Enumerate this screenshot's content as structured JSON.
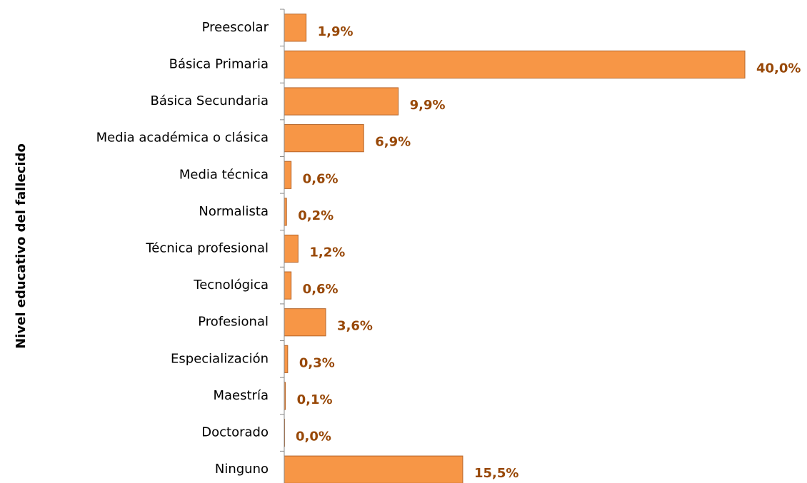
{
  "chart_data": {
    "type": "barh",
    "y_label": "Nivel educativo del fallecido",
    "categories": [
      "Preescolar",
      "Básica Primaria",
      "Básica Secundaria",
      "Media académica o clásica",
      "Media técnica",
      "Normalista",
      "Técnica profesional",
      "Tecnológica",
      "Profesional",
      "Especialización",
      "Maestría",
      "Doctorado",
      "Ninguno"
    ],
    "values": [
      1.9,
      40.0,
      9.9,
      6.9,
      0.6,
      0.2,
      1.2,
      0.6,
      3.6,
      0.3,
      0.1,
      0.0,
      15.5
    ],
    "value_labels": [
      "1,9%",
      "40,0%",
      "9,9%",
      "6,9%",
      "0,6%",
      "0,2%",
      "1,2%",
      "0,6%",
      "3,6%",
      "0,3%",
      "0,1%",
      "0,0%",
      "15,5%"
    ],
    "color": "#f79646",
    "xlim": [
      0,
      40
    ]
  }
}
